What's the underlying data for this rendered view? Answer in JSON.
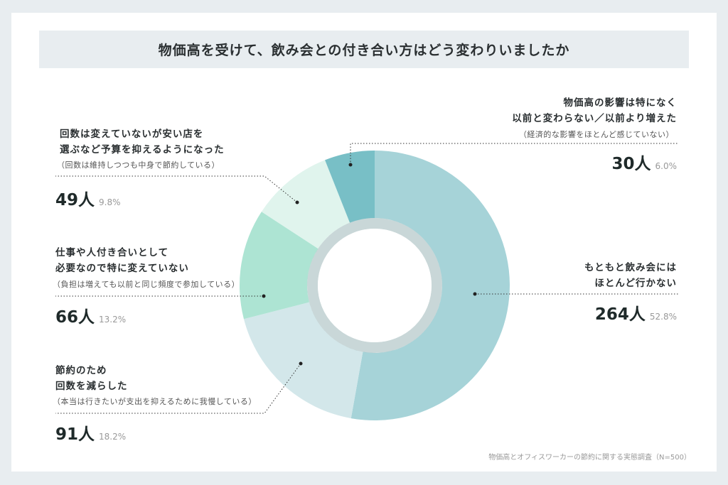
{
  "chart_data": {
    "type": "pie",
    "variant": "donut",
    "title": "物価高を受けて、飲み会との付き合い方はどう変わりいましたか",
    "source": "物価高とオフィスワーカーの節約に関する実態調査（N=500）",
    "unit": "人",
    "slices": [
      {
        "label_lines": [
          "もともと飲み会には",
          "ほとんど行かない"
        ],
        "note": "",
        "count": "264人",
        "value": 264,
        "percent": "52.8%",
        "color": "#a6d3d8"
      },
      {
        "label_lines": [
          "節約のため",
          "回数を減らした"
        ],
        "note": "（本当は行きたいが支出を抑えるために我慢している）",
        "count": "91人",
        "value": 91,
        "percent": "18.2%",
        "color": "#d3e7ea"
      },
      {
        "label_lines": [
          "仕事や人付き合いとして",
          "必要なので特に変えていない"
        ],
        "note": "（負担は増えても以前と同じ頻度で参加している）",
        "count": "66人",
        "value": 66,
        "percent": "13.2%",
        "color": "#ade4d3"
      },
      {
        "label_lines": [
          "回数は変えていないが安い店を",
          "選ぶなど予算を抑えるようになった"
        ],
        "note": "（回数は維持しつつも中身で節約している）",
        "count": "49人",
        "value": 49,
        "percent": "9.8%",
        "color": "#e0f4ed"
      },
      {
        "label_lines": [
          "物価高の影響は特になく",
          "以前と変わらない／以前より増えた"
        ],
        "note": "（経済的な影響をほとんど感じていない）",
        "count": "30人",
        "value": 30,
        "percent": "6.0%",
        "color": "#78bfc6"
      }
    ]
  }
}
